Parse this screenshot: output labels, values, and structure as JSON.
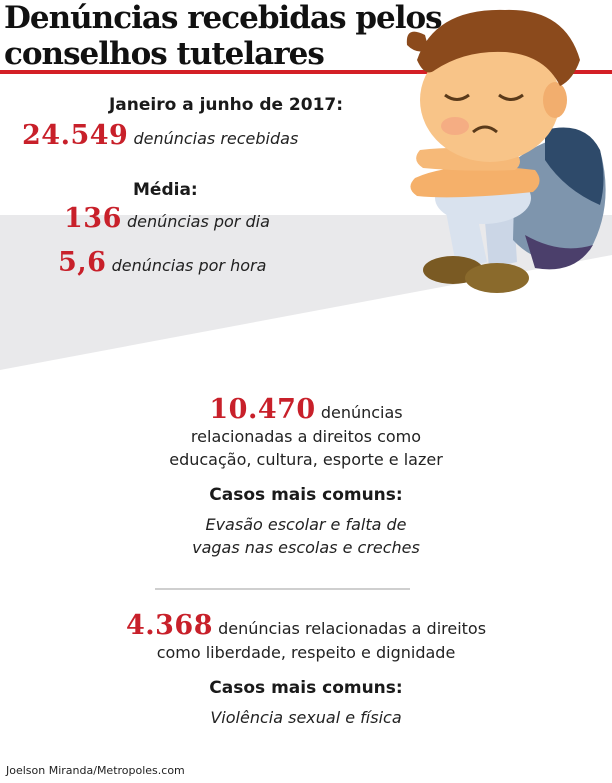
{
  "title_line1": "Denúncias recebidas pelos",
  "title_line2": "conselhos tutelares",
  "period_label": "Janeiro a junho de 2017:",
  "total": {
    "value": "24.549",
    "text": "denúncias recebidas"
  },
  "media_label": "Média:",
  "per_day": {
    "value": "136",
    "text": "denúncias por dia"
  },
  "per_hour": {
    "value": "5,6",
    "text": "denúncias por hora"
  },
  "block1": {
    "value": "10.470",
    "text1": "denúncias",
    "text2": "relacionadas a direitos como",
    "text3": "educação, cultura, esporte e lazer",
    "cases_label": "Casos mais comuns:",
    "cases1": "Evasão escolar e falta de",
    "cases2": "vagas nas escolas e creches"
  },
  "block2": {
    "value": "4.368",
    "text1": "denúncias relacionadas a direitos",
    "text2": "como liberdade, respeito e dignidade",
    "cases_label": "Casos mais comuns:",
    "cases1": "Violência sexual e física"
  },
  "credit": "Joelson Miranda/Metropoles.com",
  "colors": {
    "accent": "#c8202a",
    "rule": "#d41f26",
    "beam": "#e9e9eb"
  }
}
